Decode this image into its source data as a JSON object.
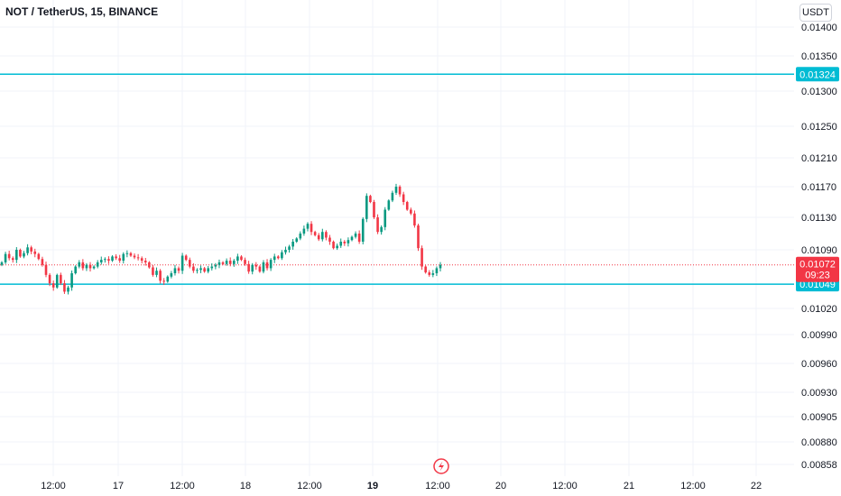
{
  "header": {
    "title": "NOT / TetherUS, 15, BINANCE",
    "currency": "USDT"
  },
  "chart_data": {
    "type": "candlestick",
    "symbol": "NOT / TetherUS",
    "interval": "15",
    "exchange": "BINANCE",
    "y_ticks": [
      "0.01400",
      "0.01350",
      "0.01300",
      "0.01250",
      "0.01210",
      "0.01170",
      "0.01130",
      "0.01090",
      "0.01020",
      "0.00990",
      "0.00960",
      "0.00930",
      "0.00905",
      "0.00880",
      "0.00858"
    ],
    "x_labels": [
      "12:00",
      "17",
      "12:00",
      "18",
      "12:00",
      "19",
      "12:00",
      "20",
      "12:00",
      "21",
      "12:00",
      "22"
    ],
    "x_bold_labels": [
      "19"
    ],
    "horizontal_lines": [
      {
        "value": 0.01324,
        "label": "0.01324",
        "color": "#00bcd4"
      },
      {
        "value": 0.01049,
        "label": "0.01049",
        "color": "#00bcd4"
      }
    ],
    "last_price": {
      "value": 0.01072,
      "label": "0.01072",
      "countdown": "09:23",
      "color": "#f23645"
    },
    "up_color": "#089981",
    "down_color": "#f23645",
    "candles_close_path": [
      0.01075,
      0.01085,
      0.0108,
      0.01078,
      0.0109,
      0.01082,
      0.01086,
      0.01093,
      0.01088,
      0.01085,
      0.01079,
      0.01072,
      0.0106,
      0.0105,
      0.01045,
      0.0106,
      0.0105,
      0.0104,
      0.01045,
      0.01062,
      0.0107,
      0.01075,
      0.01068,
      0.01072,
      0.01068,
      0.0107,
      0.01075,
      0.01078,
      0.01079,
      0.01077,
      0.01082,
      0.0108,
      0.01077,
      0.01085,
      0.01086,
      0.01083,
      0.01081,
      0.0108,
      0.01077,
      0.01075,
      0.01069,
      0.0106,
      0.01065,
      0.01053,
      0.01052,
      0.01058,
      0.01062,
      0.01068,
      0.01065,
      0.01083,
      0.01078,
      0.0107,
      0.01065,
      0.01066,
      0.01068,
      0.01064,
      0.01068,
      0.0107,
      0.01072,
      0.01075,
      0.01073,
      0.01077,
      0.01073,
      0.01077,
      0.01082,
      0.01078,
      0.01073,
      0.01064,
      0.01072,
      0.0107,
      0.01064,
      0.01075,
      0.01068,
      0.01078,
      0.01082,
      0.0108,
      0.01087,
      0.0109,
      0.01094,
      0.011,
      0.01104,
      0.0111,
      0.01116,
      0.01122,
      0.01112,
      0.01108,
      0.01103,
      0.01112,
      0.01105,
      0.011,
      0.01092,
      0.01095,
      0.011,
      0.01098,
      0.01102,
      0.01106,
      0.0111,
      0.011,
      0.01128,
      0.01158,
      0.0115,
      0.0113,
      0.01112,
      0.01118,
      0.0114,
      0.01152,
      0.01162,
      0.0117,
      0.0116,
      0.0115,
      0.0114,
      0.01135,
      0.0112,
      0.01092,
      0.0107,
      0.01063,
      0.0106,
      0.01062,
      0.01068,
      0.01072
    ]
  }
}
